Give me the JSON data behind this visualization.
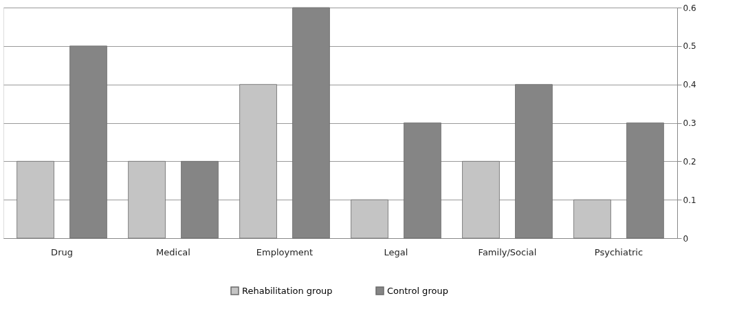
{
  "chart_data": {
    "type": "bar",
    "categories": [
      "Drug",
      "Medical",
      "Employment",
      "Legal",
      "Family/Social",
      "Psychiatric"
    ],
    "series": [
      {
        "name": "Rehabilitation group",
        "color": "#c4c4c4",
        "values": [
          0.2,
          0.2,
          0.4,
          0.1,
          0.2,
          0.1
        ]
      },
      {
        "name": "Control group",
        "color": "#858585",
        "values": [
          0.5,
          0.2,
          0.6,
          0.3,
          0.4,
          0.3
        ]
      }
    ],
    "ylim": [
      0,
      0.6
    ],
    "yticks": [
      0,
      0.1,
      0.2,
      0.3,
      0.4,
      0.5,
      0.6
    ],
    "grid": "y",
    "legend": "bottom"
  }
}
